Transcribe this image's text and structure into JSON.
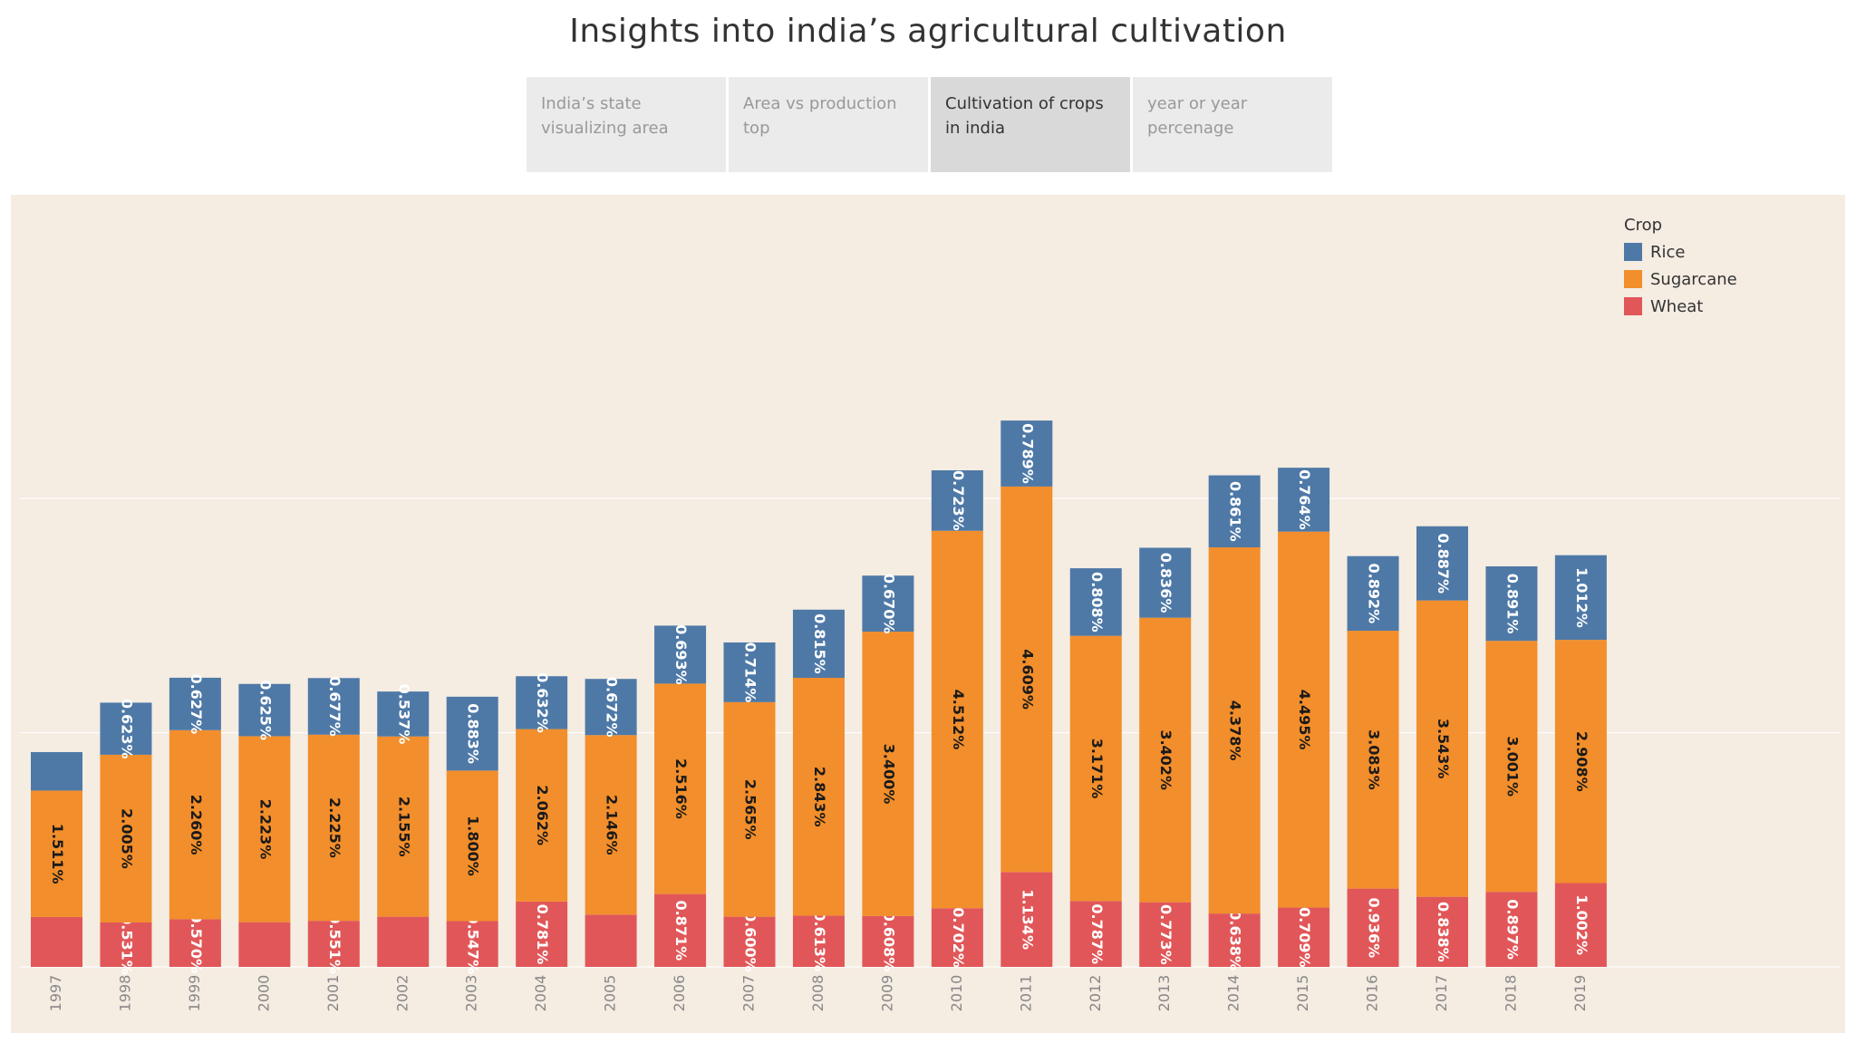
{
  "title": "Insights into india’s agricultural cultivation",
  "tabs": [
    {
      "label": "India’s state visualizing area",
      "active": false
    },
    {
      "label": "Area vs production top",
      "active": false
    },
    {
      "label": "Cultivation of crops in india",
      "active": true
    },
    {
      "label": "year or year percenage",
      "active": false
    }
  ],
  "legend": {
    "title": "Crop",
    "items": [
      {
        "name": "Rice",
        "color": "#4e79a7"
      },
      {
        "name": "Sugarcane",
        "color": "#f28e2b"
      },
      {
        "name": "Wheat",
        "color": "#e15759"
      }
    ]
  },
  "colors": {
    "panel_bg": "#f5ece2",
    "rice": "#4e79a7",
    "sugarcane": "#f28e2b",
    "wheat": "#e15759"
  },
  "chart_data": {
    "type": "bar",
    "stacked": true,
    "title": "",
    "xlabel": "",
    "ylabel": "",
    "ylim": [
      0,
      7.5
    ],
    "grid": true,
    "legend_position": "top-right",
    "categories": [
      "1997",
      "1998",
      "1999",
      "2000",
      "2001",
      "2002",
      "2003",
      "2004",
      "2005",
      "2006",
      "2007",
      "2008",
      "2009",
      "2010",
      "2011",
      "2012",
      "2013",
      "2014",
      "2015",
      "2016",
      "2017",
      "2018",
      "2019"
    ],
    "series": [
      {
        "name": "Wheat",
        "color": "#e15759",
        "values": [
          0.597,
          0.531,
          0.57,
          0.535,
          0.551,
          0.6,
          0.547,
          0.781,
          0.625,
          0.871,
          0.6,
          0.613,
          0.608,
          0.702,
          1.134,
          0.787,
          0.773,
          0.638,
          0.709,
          0.936,
          0.838,
          0.897,
          1.002
        ],
        "labels": [
          "",
          "0.531%",
          "0.570%",
          "",
          "0.551%",
          "",
          "0.547%",
          "0.781%",
          "",
          "0.871%",
          "0.600%",
          "0.613%",
          "0.608%",
          "0.702%",
          "1.134%",
          "0.787%",
          "0.773%",
          "0.638%",
          "0.709%",
          "0.936%",
          "0.838%",
          "0.897%",
          "1.002%"
        ]
      },
      {
        "name": "Sugarcane",
        "color": "#f28e2b",
        "values": [
          1.511,
          2.005,
          2.26,
          2.223,
          2.225,
          2.155,
          1.8,
          2.062,
          2.146,
          2.516,
          2.565,
          2.843,
          3.4,
          4.512,
          4.609,
          3.171,
          3.402,
          4.378,
          4.495,
          3.083,
          3.543,
          3.001,
          2.908
        ],
        "labels": [
          "1.511%",
          "2.005%",
          "2.260%",
          "2.223%",
          "2.225%",
          "2.155%",
          "1.800%",
          "2.062%",
          "2.146%",
          "2.516%",
          "2.565%",
          "2.843%",
          "3.400%",
          "4.512%",
          "4.609%",
          "3.171%",
          "3.402%",
          "4.378%",
          "4.495%",
          "3.083%",
          "3.543%",
          "3.001%",
          "2.908%"
        ]
      },
      {
        "name": "Rice",
        "color": "#4e79a7",
        "values": [
          0.46,
          0.623,
          0.627,
          0.625,
          0.677,
          0.537,
          0.883,
          0.632,
          0.672,
          0.693,
          0.714,
          0.815,
          0.67,
          0.723,
          0.789,
          0.808,
          0.836,
          0.861,
          0.764,
          0.892,
          0.887,
          0.891,
          1.012
        ],
        "labels": [
          "",
          "0.623%",
          "0.627%",
          "0.625%",
          "0.677%",
          "0.537%",
          "0.883%",
          "0.632%",
          "0.672%",
          "0.693%",
          "0.714%",
          "0.815%",
          "0.670%",
          "0.723%",
          "0.789%",
          "0.808%",
          "0.836%",
          "0.861%",
          "0.764%",
          "0.892%",
          "0.887%",
          "0.891%",
          "1.012%"
        ]
      }
    ]
  }
}
